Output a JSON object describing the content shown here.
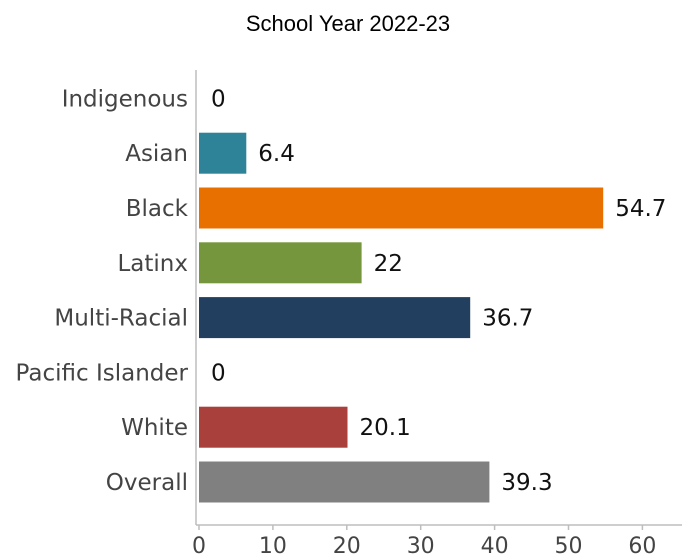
{
  "chart_data": {
    "type": "bar",
    "orientation": "horizontal",
    "subtitle": "School Year 2022-23",
    "categories": [
      "Indigenous",
      "Asian",
      "Black",
      "Latinx",
      "Multi-Racial",
      "Pacific Islander",
      "White",
      "Overall"
    ],
    "values": [
      0,
      6.4,
      54.7,
      22,
      36.7,
      0,
      20.1,
      39.3
    ],
    "value_labels": [
      "0",
      "6.4",
      "54.7",
      "22",
      "36.7",
      "0",
      "20.1",
      "39.3"
    ],
    "colors": [
      "#2e8399",
      "#2e8399",
      "#e87000",
      "#76963d",
      "#233f60",
      "#233f60",
      "#a9403b",
      "#808080"
    ],
    "xlim": [
      0,
      65
    ],
    "xticks": [
      0,
      10,
      20,
      30,
      40,
      50,
      60
    ],
    "grid": false,
    "legend": "none"
  }
}
